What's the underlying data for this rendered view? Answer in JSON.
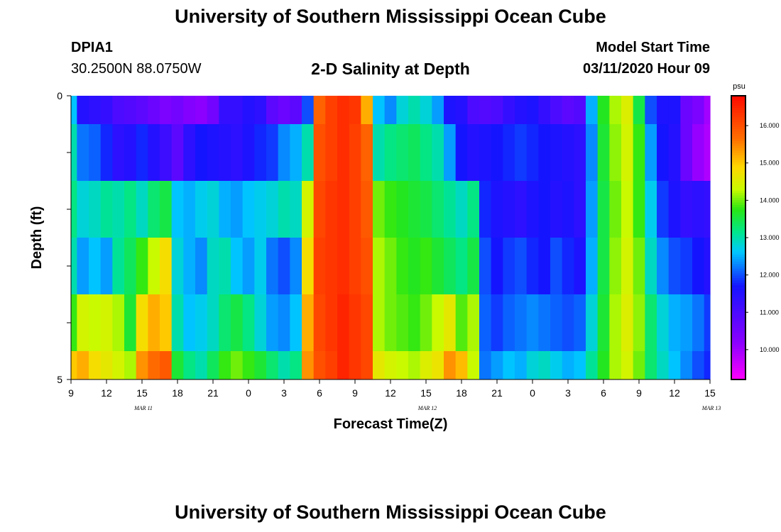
{
  "header": {
    "title": "University of Southern Mississippi Ocean Cube",
    "station_id": "DPIA1",
    "station_coords": "30.2500N 88.0750W",
    "chart_title": "2-D Salinity at Depth",
    "model_start_label": "Model Start Time",
    "model_start_value": "03/11/2020 Hour 09"
  },
  "footer": {
    "title": "University of Southern Mississippi Ocean Cube"
  },
  "chart_data": {
    "type": "heatmap",
    "title": "2-D Salinity at Depth",
    "xlabel": "Forecast Time(Z)",
    "ylabel": "Depth (ft)",
    "x_tick_labels": [
      "9",
      "12",
      "15",
      "18",
      "21",
      "0",
      "3",
      "6",
      "9",
      "12",
      "15",
      "18",
      "21",
      "0",
      "3",
      "6",
      "9",
      "12",
      "15"
    ],
    "date_labels": [
      {
        "label": "MAR 11",
        "hours": 6
      },
      {
        "label": "MAR 12",
        "hours": 30
      },
      {
        "label": "MAR 13",
        "hours": 54
      }
    ],
    "y_tick_labels": [
      "0",
      "5"
    ],
    "y_range": [
      0,
      5
    ],
    "x_range_hours": [
      0,
      54
    ],
    "colorbar": {
      "unit": "psu",
      "min": 9.2,
      "max": 16.8,
      "tick_labels": [
        "10.000",
        "11.000",
        "12.000",
        "13.000",
        "14.000",
        "15.000",
        "16.000"
      ],
      "tick_values": [
        10,
        11,
        12,
        13,
        14,
        15,
        16
      ]
    },
    "x_hours": [
      0,
      1,
      2,
      3,
      4,
      5,
      6,
      7,
      8,
      9,
      10,
      11,
      12,
      13,
      14,
      15,
      16,
      17,
      18,
      19,
      20,
      21,
      22,
      23,
      24,
      25,
      26,
      27,
      28,
      29,
      30,
      31,
      32,
      33,
      34,
      35,
      36,
      37,
      38,
      39,
      40,
      41,
      42,
      43,
      44,
      45,
      46,
      47,
      48,
      49,
      50,
      51,
      52,
      53,
      54
    ],
    "depth_layers": [
      "0-0.5",
      "0.5-1.5",
      "1.5-2.5",
      "2.5-3.5",
      "3.5-4.5",
      "4.5-5"
    ],
    "values": [
      [
        12.6,
        11.5,
        11.4,
        11.3,
        11.0,
        10.9,
        10.8,
        10.6,
        10.4,
        10.5,
        10.3,
        10.2,
        10.5,
        11.3,
        11.3,
        11.5,
        11.4,
        10.8,
        10.6,
        10.8,
        12.0,
        15.8,
        16.2,
        16.4,
        16.3,
        15.2,
        12.6,
        12.3,
        12.8,
        13.0,
        12.8,
        12.4,
        11.6,
        11.5,
        11.0,
        10.9,
        11.0,
        11.3,
        11.5,
        11.6,
        11.3,
        11.0,
        10.8,
        10.9,
        12.5,
        13.7,
        14.2,
        14.5,
        13.5,
        12.0,
        11.6,
        11.6,
        10.6,
        10.4,
        10.0
      ],
      [
        13.0,
        12.2,
        12.1,
        11.8,
        11.4,
        11.5,
        11.8,
        11.5,
        11.2,
        10.8,
        11.4,
        11.7,
        11.6,
        11.5,
        11.4,
        11.6,
        11.8,
        11.9,
        12.3,
        12.5,
        13.0,
        16.0,
        16.2,
        16.4,
        16.2,
        15.8,
        13.0,
        13.2,
        13.3,
        13.4,
        13.2,
        13.0,
        12.4,
        11.7,
        11.5,
        11.6,
        11.7,
        11.8,
        11.9,
        11.8,
        11.7,
        11.6,
        11.5,
        11.4,
        12.3,
        13.6,
        14.1,
        14.4,
        13.8,
        12.4,
        11.7,
        11.5,
        10.6,
        10.1,
        9.9
      ],
      [
        13.2,
        12.8,
        12.9,
        13.1,
        13.0,
        13.2,
        12.9,
        13.3,
        13.5,
        12.6,
        12.5,
        12.7,
        12.8,
        12.5,
        12.4,
        12.6,
        12.7,
        12.8,
        13.0,
        12.9,
        14.4,
        16.1,
        16.3,
        16.4,
        16.2,
        15.9,
        14.0,
        13.8,
        13.7,
        13.6,
        13.5,
        13.3,
        13.1,
        12.9,
        13.2,
        11.8,
        11.6,
        11.5,
        11.4,
        11.6,
        11.7,
        11.5,
        11.6,
        11.4,
        12.4,
        13.5,
        14.0,
        14.3,
        13.8,
        12.7,
        11.9,
        11.6,
        11.3,
        11.4,
        11.3
      ],
      [
        13.0,
        12.4,
        12.6,
        12.4,
        13.1,
        13.4,
        13.8,
        14.3,
        14.8,
        12.8,
        12.5,
        12.3,
        12.9,
        13.0,
        12.6,
        12.4,
        12.7,
        12.2,
        12.0,
        12.3,
        14.8,
        16.2,
        16.3,
        16.4,
        16.2,
        16.0,
        14.2,
        14.0,
        13.8,
        13.7,
        13.8,
        13.6,
        13.4,
        13.2,
        13.5,
        12.0,
        11.7,
        11.9,
        12.0,
        11.8,
        11.7,
        12.0,
        11.8,
        11.6,
        12.5,
        13.5,
        14.1,
        14.4,
        14.0,
        12.9,
        12.3,
        12.0,
        11.9,
        11.7,
        11.5
      ],
      [
        13.8,
        14.4,
        14.3,
        14.4,
        14.2,
        13.6,
        14.8,
        15.2,
        15.0,
        13.0,
        12.6,
        12.7,
        12.9,
        13.3,
        13.5,
        13.2,
        12.8,
        12.4,
        12.3,
        12.6,
        15.2,
        16.1,
        16.3,
        16.5,
        16.3,
        16.1,
        14.2,
        14.0,
        13.9,
        13.8,
        14.0,
        14.3,
        14.6,
        13.9,
        14.2,
        12.1,
        11.9,
        12.1,
        12.2,
        12.3,
        12.2,
        12.1,
        12.0,
        12.1,
        12.8,
        13.6,
        14.2,
        14.5,
        14.1,
        13.3,
        12.8,
        12.5,
        12.4,
        12.2,
        11.9
      ],
      [
        15.0,
        15.2,
        14.8,
        14.6,
        14.4,
        14.2,
        15.4,
        15.7,
        15.9,
        13.6,
        13.2,
        13.0,
        13.4,
        13.8,
        14.0,
        13.8,
        13.6,
        13.3,
        13.0,
        13.2,
        15.4,
        16.0,
        16.2,
        16.5,
        16.3,
        16.1,
        14.6,
        14.4,
        14.3,
        14.2,
        14.5,
        14.7,
        15.4,
        15.1,
        14.3,
        12.2,
        12.4,
        12.6,
        12.5,
        12.8,
        12.9,
        12.7,
        12.5,
        12.6,
        13.1,
        13.7,
        14.2,
        14.4,
        14.0,
        13.3,
        12.9,
        12.6,
        12.3,
        12.0,
        11.8
      ]
    ]
  }
}
